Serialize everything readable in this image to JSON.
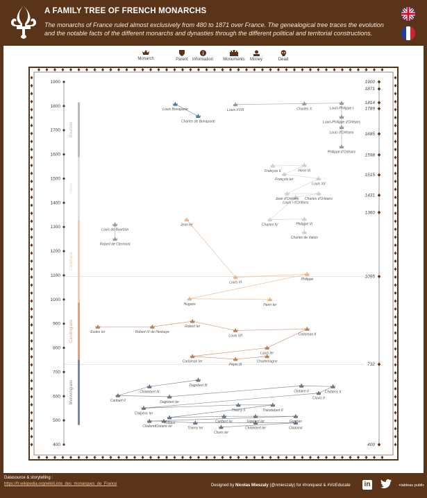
{
  "header": {
    "title": "A FAMILY TREE OF FRENCH MONARCHS",
    "subtitle": "The monarchs of France ruled almost exclusively from 480 to 1871 over France. The genealogical tree traces the evolution and the notable facts of the different monarchs and dynasties through the different political and territorial constructions.",
    "logo_icon": "fleur-de-lis-icon",
    "flags": [
      "uk-flag-icon",
      "france-flag-icon"
    ]
  },
  "legend": [
    {
      "label": "Monarch",
      "icon": "crown-icon"
    },
    {
      "label": "Parent",
      "icon": "shield-icon"
    },
    {
      "label": "Information",
      "icon": "info-icon"
    },
    {
      "label": "Monuments",
      "icon": "castle-icon"
    },
    {
      "label": "Money",
      "icon": "money-icon"
    },
    {
      "label": "Dead",
      "icon": "skull-icon"
    }
  ],
  "colors": {
    "frame": "#5a3418",
    "bonaparte": "#4a78a8",
    "bourbon": "#9a9a9a",
    "valois": "#cfcfc8",
    "capetians": "#e8b48a",
    "carolingians": "#c0805a",
    "merovingians": "#6a7682",
    "bourbon_bar": "#b9b9b9",
    "valois_bar": "#e0e0e0",
    "capetians_bar": "#f0cdb0",
    "carolingians_bar": "#d4a484",
    "merovingians_bar": "#7d8894"
  },
  "chart_data": {
    "type": "scatter",
    "title": "",
    "ylabel": "",
    "ylim": [
      400,
      1900
    ],
    "left_ticks": [
      400,
      500,
      600,
      700,
      800,
      900,
      1000,
      1100,
      1200,
      1300,
      1400,
      1500,
      1600,
      1700,
      1800,
      1900
    ],
    "right_ticks": [
      400,
      732,
      1095,
      1360,
      1431,
      1515,
      1598,
      1685,
      1789,
      1814,
      1871,
      1900
    ],
    "reference_lines": [
      1095,
      732
    ],
    "dynasties": [
      {
        "name": "Bourbon",
        "start": 1589,
        "end": 1815,
        "color_key": "bourbon_bar"
      },
      {
        "name": "Valois",
        "start": 1328,
        "end": 1589,
        "color_key": "valois_bar"
      },
      {
        "name": "Capetians",
        "start": 987,
        "end": 1328,
        "color_key": "capetians_bar"
      },
      {
        "name": "Carolingians",
        "start": 751,
        "end": 987,
        "color_key": "carolingians_bar"
      },
      {
        "name": "Merovingians",
        "start": 481,
        "end": 751,
        "color_key": "merovingians_bar"
      }
    ],
    "labels": [
      {
        "name": "Louis Bonaparte",
        "x": 0.34,
        "y": 1808,
        "color_key": "bonaparte"
      },
      {
        "name": "Charles de Bonaparte",
        "x": 0.42,
        "y": 1758,
        "color_key": "bonaparte"
      },
      {
        "name": "Louis XVIII",
        "x": 0.55,
        "y": 1806,
        "color_key": "bourbon"
      },
      {
        "name": "Charles X",
        "x": 0.79,
        "y": 1810,
        "color_key": "bourbon"
      },
      {
        "name": "Louis-Philippe I",
        "x": 0.92,
        "y": 1812,
        "color_key": "bourbon"
      },
      {
        "name": "Louis-Philippe d'Orléans",
        "x": 0.92,
        "y": 1755,
        "color_key": "bourbon"
      },
      {
        "name": "Louis d'Orléans",
        "x": 0.92,
        "y": 1712,
        "color_key": "bourbon"
      },
      {
        "name": "Philippe d'Orléans",
        "x": 0.92,
        "y": 1632,
        "color_key": "bourbon"
      },
      {
        "name": "François II",
        "x": 0.68,
        "y": 1553,
        "color_key": "valois"
      },
      {
        "name": "Henri III",
        "x": 0.79,
        "y": 1555,
        "color_key": "valois"
      },
      {
        "name": "François Ier",
        "x": 0.72,
        "y": 1518,
        "color_key": "valois"
      },
      {
        "name": "Louis XII",
        "x": 0.84,
        "y": 1500,
        "color_key": "valois"
      },
      {
        "name": "Jean d'Orléans",
        "x": 0.73,
        "y": 1438,
        "color_key": "valois"
      },
      {
        "name": "Charles d'Orléans",
        "x": 0.84,
        "y": 1438,
        "color_key": "valois"
      },
      {
        "name": "Louis I d'Orléans",
        "x": 0.76,
        "y": 1423,
        "color_key": "valois"
      },
      {
        "name": "Charles IV",
        "x": 0.67,
        "y": 1330,
        "color_key": "valois"
      },
      {
        "name": "Philippe VI",
        "x": 0.79,
        "y": 1333,
        "color_key": "valois"
      },
      {
        "name": "Charles de Valois",
        "x": 0.79,
        "y": 1278,
        "color_key": "valois"
      },
      {
        "name": "Louis de Bourbon",
        "x": 0.13,
        "y": 1310,
        "color_key": "bourbon"
      },
      {
        "name": "Robert de Clermont",
        "x": 0.13,
        "y": 1250,
        "color_key": "bourbon"
      },
      {
        "name": "Jean Ier",
        "x": 0.38,
        "y": 1330,
        "color_key": "capetians"
      },
      {
        "name": "Louis VI",
        "x": 0.55,
        "y": 1092,
        "color_key": "capetians"
      },
      {
        "name": "Philippe",
        "x": 0.8,
        "y": 1105,
        "color_key": "capetians"
      },
      {
        "name": "Hugues",
        "x": 0.39,
        "y": 1003,
        "color_key": "capetians"
      },
      {
        "name": "Henri Ier",
        "x": 0.67,
        "y": 1000,
        "color_key": "capetians"
      },
      {
        "name": "Eudes Ier",
        "x": 0.07,
        "y": 887,
        "color_key": "carolingians"
      },
      {
        "name": "Robert IV de Hesbaye",
        "x": 0.26,
        "y": 887,
        "color_key": "carolingians"
      },
      {
        "name": "Robert Ier",
        "x": 0.4,
        "y": 910,
        "color_key": "carolingians"
      },
      {
        "name": "Louis VII",
        "x": 0.55,
        "y": 872,
        "color_key": "carolingians"
      },
      {
        "name": "Carloman II",
        "x": 0.8,
        "y": 878,
        "color_key": "carolingians"
      },
      {
        "name": "Louis Ier",
        "x": 0.66,
        "y": 800,
        "color_key": "carolingians"
      },
      {
        "name": "Carloman Ier",
        "x": 0.4,
        "y": 765,
        "color_key": "carolingians"
      },
      {
        "name": "Pépin III",
        "x": 0.55,
        "y": 753,
        "color_key": "carolingians"
      },
      {
        "name": "Charlemagne",
        "x": 0.66,
        "y": 765,
        "color_key": "carolingians"
      },
      {
        "name": "Dagobert III",
        "x": 0.42,
        "y": 667,
        "color_key": "merovingians"
      },
      {
        "name": "Childebert III",
        "x": 0.25,
        "y": 640,
        "color_key": "merovingians"
      },
      {
        "name": "Caribert II",
        "x": 0.14,
        "y": 603,
        "color_key": "merovingians"
      },
      {
        "name": "Dagobert Ier",
        "x": 0.32,
        "y": 598,
        "color_key": "merovingians"
      },
      {
        "name": "Clotaire II",
        "x": 0.78,
        "y": 643,
        "color_key": "merovingians"
      },
      {
        "name": "Childéric II",
        "x": 0.89,
        "y": 640,
        "color_key": "merovingians"
      },
      {
        "name": "Clovis II",
        "x": 0.84,
        "y": 613,
        "color_key": "merovingians"
      },
      {
        "name": "Chilpéric Ier",
        "x": 0.23,
        "y": 551,
        "color_key": "merovingians"
      },
      {
        "name": "Thierry II",
        "x": 0.56,
        "y": 564,
        "color_key": "merovingians"
      },
      {
        "name": "Théodebert II",
        "x": 0.68,
        "y": 564,
        "color_key": "merovingians"
      },
      {
        "name": "Thibaut",
        "x": 0.32,
        "y": 512,
        "color_key": "merovingians"
      },
      {
        "name": "Caribert Ier",
        "x": 0.51,
        "y": 517,
        "color_key": "merovingians"
      },
      {
        "name": "Sigebert Ier",
        "x": 0.62,
        "y": 517,
        "color_key": "merovingians"
      },
      {
        "name": "Gontran",
        "x": 0.76,
        "y": 517,
        "color_key": "merovingians"
      },
      {
        "name": "Clodomir",
        "x": 0.25,
        "y": 497,
        "color_key": "merovingians"
      },
      {
        "name": "Clotaire Ier",
        "x": 0.3,
        "y": 497,
        "color_key": "merovingians"
      },
      {
        "name": "Thierry Ier",
        "x": 0.41,
        "y": 490,
        "color_key": "merovingians"
      },
      {
        "name": "Childebert Ier",
        "x": 0.62,
        "y": 490,
        "color_key": "merovingians"
      },
      {
        "name": "Clodomir",
        "x": 0.76,
        "y": 490,
        "color_key": "merovingians"
      },
      {
        "name": "Clovis Ier",
        "x": 0.5,
        "y": 472,
        "color_key": "merovingians"
      }
    ]
  },
  "footer": {
    "source_label": "Datasource & storytelling :",
    "source_link": "https://fr.wikipedia.org/wiki/Liste_des_monarques_de_France",
    "credit_prefix": "Designed by ",
    "credit_name": "Nicolas Mieszaly",
    "credit_suffix": " (@nmieszaly) for #Ironquest & #VizEducate",
    "linkedin_icon": "linkedin-icon",
    "twitter_icon": "twitter-icon",
    "tableau_label": "+tableau public"
  }
}
